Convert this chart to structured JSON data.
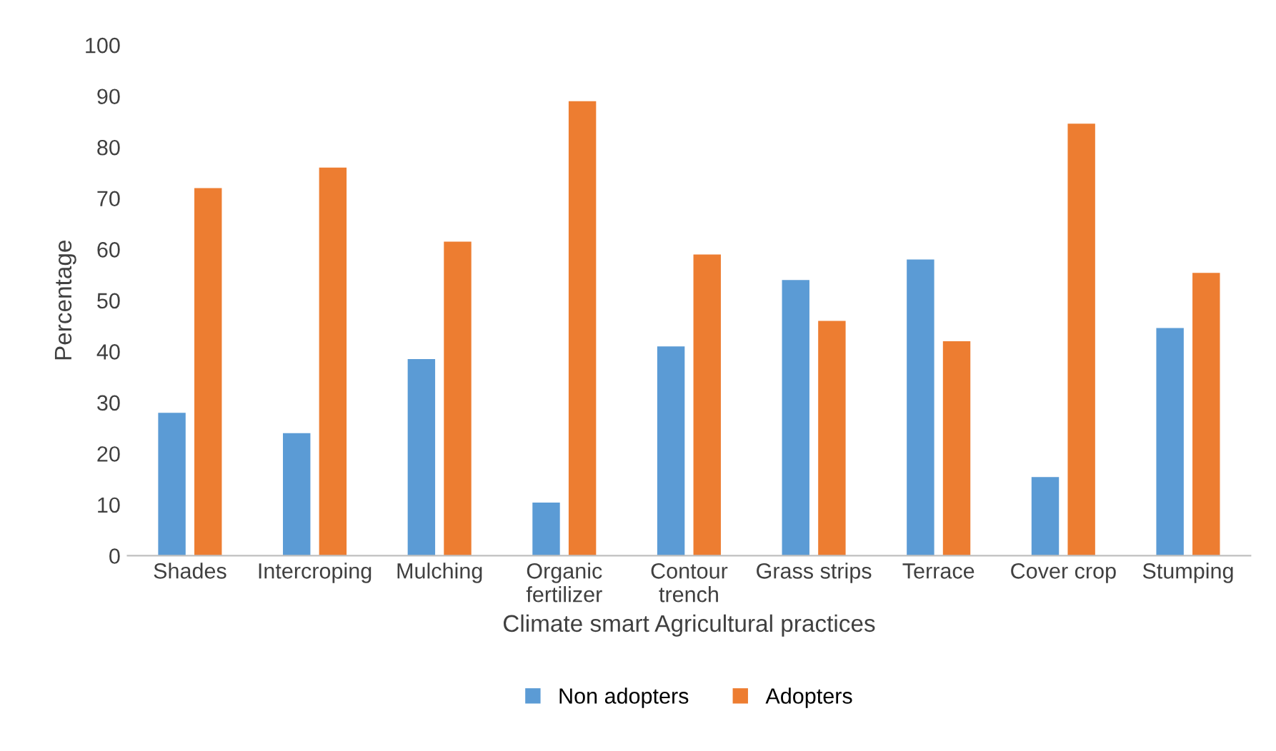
{
  "chart_data": {
    "type": "bar",
    "xlabel": "Climate smart Agricultural practices",
    "ylabel": "Percentage",
    "categories": [
      "Shades",
      "Intercroping",
      "Mulching",
      "Organic\nfertilizer",
      "Contour\ntrench",
      "Grass strips",
      "Terrace",
      "Cover crop",
      "Stumping"
    ],
    "series": [
      {
        "name": "Non adopters",
        "color": "#5b9bd5",
        "values": [
          28,
          24,
          38.5,
          10.4,
          41,
          54,
          58,
          15.4,
          44.6
        ]
      },
      {
        "name": "Adopters",
        "color": "#ed7d31",
        "values": [
          72,
          76,
          61.5,
          89,
          59,
          46,
          42,
          84.6,
          55.4
        ]
      }
    ],
    "ylim": [
      0,
      100
    ],
    "yticks": [
      0,
      10,
      20,
      30,
      40,
      50,
      60,
      70,
      80,
      90,
      100
    ],
    "grid": false,
    "legend": "bottom"
  }
}
